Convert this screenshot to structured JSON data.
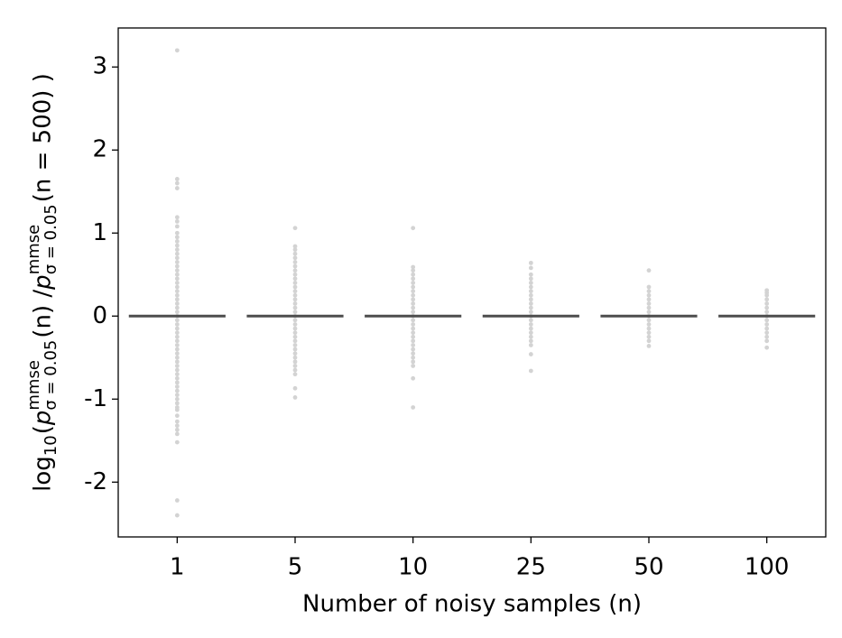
{
  "chart_data": {
    "type": "strip",
    "x_label": "Number of noisy samples (n)",
    "y_label_parts": [
      "log",
      "10",
      "( ",
      "p",
      "mmse",
      "σ = 0.05",
      "(n) / ",
      "p",
      "mmse",
      "σ = 0.05",
      "(n = 500) )"
    ],
    "categories": [
      "1",
      "5",
      "10",
      "25",
      "50",
      "100"
    ],
    "point_color": "#d3d3d3",
    "points": [
      [
        3.2,
        1.65,
        1.6,
        1.54,
        1.19,
        1.14,
        1.08,
        1.0,
        0.95,
        0.9,
        0.85,
        0.8,
        0.75,
        0.7,
        0.65,
        0.6,
        0.55,
        0.5,
        0.45,
        0.4,
        0.35,
        0.3,
        0.25,
        0.2,
        0.15,
        0.1,
        0.05,
        0,
        -0.05,
        -0.1,
        -0.15,
        -0.2,
        -0.25,
        -0.3,
        -0.35,
        -0.4,
        -0.45,
        -0.5,
        -0.55,
        -0.6,
        -0.65,
        -0.7,
        -0.75,
        -0.8,
        -0.85,
        -0.9,
        -0.95,
        -1.0,
        -1.05,
        -1.1,
        -1.13,
        -1.2,
        -1.27,
        -1.32,
        -1.37,
        -1.42,
        -1.52,
        -2.22,
        -2.4
      ],
      [
        1.06,
        0.84,
        0.8,
        0.75,
        0.7,
        0.65,
        0.6,
        0.55,
        0.5,
        0.45,
        0.4,
        0.35,
        0.3,
        0.25,
        0.2,
        0.15,
        0.1,
        0.05,
        0,
        -0.05,
        -0.1,
        -0.15,
        -0.2,
        -0.25,
        -0.3,
        -0.35,
        -0.4,
        -0.45,
        -0.5,
        -0.55,
        -0.6,
        -0.65,
        -0.7,
        -0.87,
        -0.98
      ],
      [
        1.06,
        0.59,
        0.55,
        0.5,
        0.45,
        0.4,
        0.35,
        0.3,
        0.25,
        0.2,
        0.15,
        0.1,
        0.05,
        0,
        -0.05,
        -0.1,
        -0.15,
        -0.2,
        -0.25,
        -0.3,
        -0.35,
        -0.4,
        -0.45,
        -0.5,
        -0.55,
        -0.6,
        -0.75,
        -1.1
      ],
      [
        0.64,
        0.58,
        0.5,
        0.45,
        0.4,
        0.35,
        0.3,
        0.25,
        0.2,
        0.15,
        0.1,
        0.05,
        0,
        -0.05,
        -0.1,
        -0.15,
        -0.2,
        -0.25,
        -0.3,
        -0.35,
        -0.46,
        -0.66
      ],
      [
        0.55,
        0.35,
        0.3,
        0.25,
        0.2,
        0.15,
        0.1,
        0.05,
        0,
        -0.05,
        -0.1,
        -0.15,
        -0.2,
        -0.25,
        -0.3,
        -0.36
      ],
      [
        0.31,
        0.28,
        0.25,
        0.2,
        0.15,
        0.1,
        0.05,
        0,
        -0.05,
        -0.1,
        -0.15,
        -0.2,
        -0.25,
        -0.3,
        -0.38
      ]
    ],
    "line_color": "#4d4d4d",
    "line_values": [
      0,
      0,
      0,
      0,
      0,
      0
    ],
    "ylim": [
      -2.66,
      3.47
    ],
    "yticks": [
      -2,
      -1,
      0,
      1,
      2,
      3
    ]
  }
}
